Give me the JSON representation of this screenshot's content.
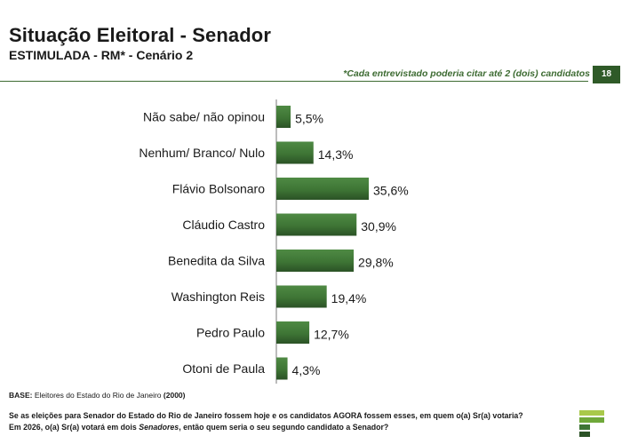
{
  "header": {
    "title": "Situação Eleitoral - Senador",
    "subtitle": "ESTIMULADA - RM* - Cenário 2",
    "note": "*Cada entrevistado poderia citar até 2 (dois) candidatos",
    "page_number": "18"
  },
  "colors": {
    "bar_fill": "#3e7535",
    "bar_dark": "#2b5226",
    "accent": "#3d6b32"
  },
  "chart_data": {
    "type": "bar",
    "orientation": "horizontal",
    "categories": [
      "Não sabe/ não opinou",
      "Nenhum/ Branco/ Nulo",
      "Flávio Bolsonaro",
      "Cláudio Castro",
      "Benedita da Silva",
      "Washington Reis",
      "Pedro Paulo",
      "Otoni de Paula"
    ],
    "values": [
      5.5,
      14.3,
      35.6,
      30.9,
      29.8,
      19.4,
      12.7,
      4.3
    ],
    "value_labels": [
      "5,5%",
      "14,3%",
      "35,6%",
      "30,9%",
      "29,8%",
      "19,4%",
      "12,7%",
      "4,3%"
    ],
    "title": "",
    "xlabel": "",
    "ylabel": "",
    "xlim": [
      0,
      40
    ],
    "grid": false,
    "legend": "none"
  },
  "footer": {
    "base_label": "BASE:",
    "base_text": "Eleitores do Estado do Rio de Janeiro",
    "base_count": "(2000)",
    "question_line1": "Se as eleições para Senador do Estado do Rio de Janeiro fossem hoje e os candidatos AGORA fossem esses, em quem o(a) Sr(a) votaria?",
    "question_line2_a": "Em 2026, o(a) Sr(a) votará em dois",
    "question_line2_em": "Senadores",
    "question_line2_b": ", então quem seria o seu segundo candidato a Senador?"
  }
}
